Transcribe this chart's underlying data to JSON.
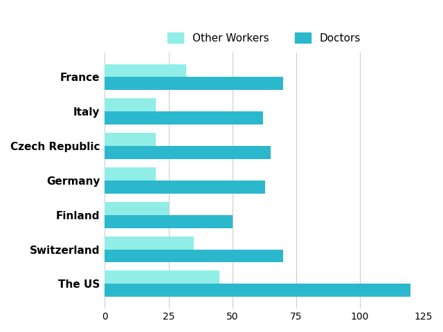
{
  "countries": [
    "The US",
    "Switzerland",
    "Finland",
    "Germany",
    "Czech Republic",
    "Italy",
    "France"
  ],
  "other_workers": [
    45,
    35,
    25,
    20,
    20,
    20,
    32
  ],
  "doctors": [
    120,
    70,
    50,
    63,
    65,
    62,
    70
  ],
  "other_workers_color": "#90eee6",
  "doctors_color": "#2bb8cc",
  "legend_labels": [
    "Other Workers",
    "Doctors"
  ],
  "xlim": [
    0,
    125
  ],
  "xticks": [
    0,
    25,
    50,
    75,
    100,
    125
  ],
  "background_color": "#ffffff",
  "bar_height": 0.38,
  "grid_color": "#cccccc",
  "fontsize_yticks": 11,
  "fontsize_xticks": 10,
  "fontsize_legend": 11
}
